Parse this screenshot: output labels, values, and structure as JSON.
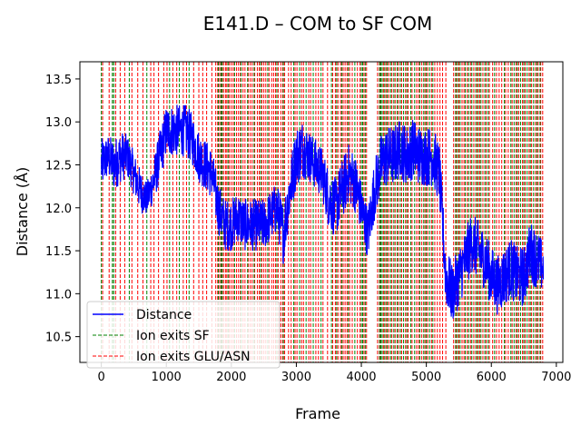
{
  "chart_data": {
    "type": "line",
    "title": "E141.D – COM to SF COM",
    "xlabel": "Frame",
    "ylabel": "Distance (Å)",
    "xlim": [
      -330,
      7100
    ],
    "ylim": [
      10.2,
      13.7
    ],
    "xticks": [
      0,
      1000,
      2000,
      3000,
      4000,
      5000,
      6000,
      7000
    ],
    "yticks": [
      10.5,
      11.0,
      11.5,
      12.0,
      12.5,
      13.0,
      13.5
    ],
    "ytick_labels": [
      "10.5",
      "11.0",
      "11.5",
      "12.0",
      "12.5",
      "13.0",
      "13.5"
    ],
    "grid": false,
    "legend_position": "lower-left",
    "series": [
      {
        "name": "Distance",
        "color": "#0000ff",
        "style": "solid",
        "x": [
          0,
          100,
          200,
          300,
          400,
          500,
          600,
          700,
          800,
          900,
          1000,
          1100,
          1200,
          1300,
          1400,
          1500,
          1600,
          1700,
          1800,
          1900,
          2000,
          2100,
          2200,
          2300,
          2400,
          2500,
          2600,
          2700,
          2800,
          2900,
          3000,
          3100,
          3200,
          3300,
          3400,
          3500,
          3600,
          3700,
          3800,
          3900,
          4000,
          4100,
          4200,
          4300,
          4400,
          4500,
          4600,
          4700,
          4800,
          4900,
          5000,
          5100,
          5200,
          5300,
          5400,
          5500,
          5600,
          5700,
          5800,
          5900,
          6000,
          6100,
          6200,
          6300,
          6400,
          6500,
          6600,
          6700,
          6800
        ],
        "y": [
          12.5,
          12.6,
          12.5,
          12.6,
          12.6,
          12.4,
          12.2,
          12.1,
          12.3,
          12.6,
          12.9,
          12.9,
          12.9,
          12.9,
          12.8,
          12.6,
          12.5,
          12.4,
          12.0,
          11.8,
          11.8,
          11.9,
          11.8,
          11.8,
          11.8,
          11.8,
          11.9,
          12.0,
          11.7,
          12.2,
          12.6,
          12.7,
          12.6,
          12.5,
          12.4,
          12.1,
          12.0,
          12.2,
          12.4,
          12.3,
          12.0,
          11.7,
          12.2,
          12.5,
          12.6,
          12.6,
          12.7,
          12.6,
          12.7,
          12.6,
          12.6,
          12.6,
          12.4,
          11.2,
          11.0,
          11.2,
          11.4,
          11.6,
          11.5,
          11.4,
          11.2,
          11.1,
          11.2,
          11.3,
          11.2,
          11.2,
          11.5,
          11.4,
          11.3
        ],
        "noise": [
          0.3,
          0.25,
          0.3,
          0.3,
          0.25,
          0.25,
          0.25,
          0.2,
          0.25,
          0.3,
          0.3,
          0.3,
          0.3,
          0.3,
          0.3,
          0.3,
          0.3,
          0.3,
          0.3,
          0.3,
          0.3,
          0.3,
          0.3,
          0.3,
          0.3,
          0.3,
          0.3,
          0.3,
          0.35,
          0.35,
          0.35,
          0.35,
          0.3,
          0.3,
          0.3,
          0.35,
          0.35,
          0.35,
          0.35,
          0.35,
          0.3,
          0.3,
          0.35,
          0.35,
          0.35,
          0.35,
          0.35,
          0.35,
          0.35,
          0.35,
          0.35,
          0.35,
          0.35,
          0.35,
          0.35,
          0.35,
          0.35,
          0.35,
          0.35,
          0.35,
          0.35,
          0.35,
          0.35,
          0.35,
          0.35,
          0.35,
          0.35,
          0.35,
          0.3
        ]
      },
      {
        "name": "Ion exits SF",
        "color": "#008000",
        "style": "dashed",
        "x": [
          0,
          170,
          190,
          430,
          700,
          1050,
          1200,
          1350,
          1800,
          1840,
          1860,
          1950,
          2050,
          2150,
          2250,
          2350,
          2450,
          2560,
          2700,
          2800,
          2960,
          3050,
          3150,
          3260,
          3380,
          3540,
          3620,
          3700,
          3800,
          3900,
          4000,
          4020,
          4060,
          4280,
          4300,
          4320,
          4360,
          4400,
          4450,
          4500,
          4550,
          4600,
          4650,
          4700,
          4760,
          4820,
          4900,
          4960,
          5000,
          5050,
          5100,
          5450,
          5480,
          5520,
          5600,
          5650,
          5700,
          5760,
          5800,
          5840,
          5900,
          5950,
          6050,
          6200,
          6300,
          6350,
          6400,
          6450,
          6500,
          6550,
          6600,
          6650,
          6700,
          6750
        ]
      },
      {
        "name": "Ion exits GLU/ASN",
        "color": "#ff0000",
        "style": "dashed",
        "x": [
          20,
          120,
          220,
          290,
          360,
          470,
          560,
          640,
          760,
          810,
          880,
          960,
          1010,
          1100,
          1160,
          1260,
          1310,
          1420,
          1500,
          1560,
          1620,
          1700,
          1760,
          1790,
          1820,
          1850,
          1880,
          1910,
          1930,
          1970,
          2000,
          2030,
          2080,
          2110,
          2140,
          2180,
          2210,
          2260,
          2290,
          2320,
          2360,
          2400,
          2430,
          2470,
          2500,
          2530,
          2580,
          2620,
          2650,
          2680,
          2720,
          2760,
          2790,
          2820,
          2880,
          2920,
          2980,
          3010,
          3080,
          3110,
          3190,
          3220,
          3300,
          3340,
          3410,
          3480,
          3560,
          3600,
          3640,
          3680,
          3720,
          3750,
          3780,
          3820,
          3860,
          3940,
          3980,
          4040,
          4080,
          4250,
          4290,
          4340,
          4380,
          4420,
          4470,
          4520,
          4570,
          4620,
          4680,
          4720,
          4780,
          4850,
          4880,
          4930,
          4980,
          5020,
          5080,
          5130,
          5170,
          5210,
          5250,
          5300,
          5420,
          5460,
          5500,
          5550,
          5580,
          5630,
          5680,
          5730,
          5780,
          5820,
          5870,
          5920,
          5970,
          6020,
          6080,
          6120,
          6160,
          6220,
          6260,
          6320,
          6380,
          6420,
          6480,
          6520,
          6580,
          6620,
          6680,
          6720,
          6760,
          6790
        ]
      }
    ]
  }
}
